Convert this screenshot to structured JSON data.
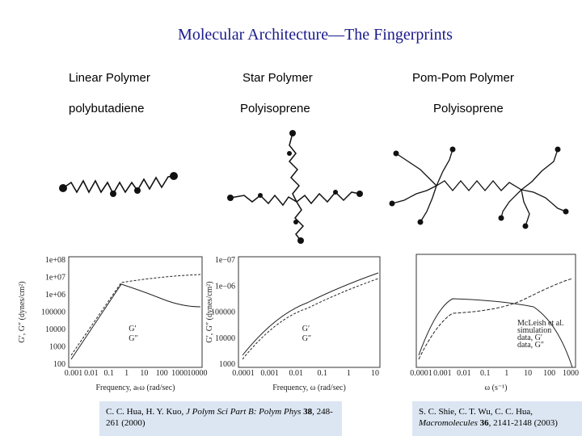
{
  "title": "Molecular Architecture—The Fingerprints",
  "columns": [
    {
      "header": "Linear Polymer",
      "material": "polybutadiene"
    },
    {
      "header": "Star Polymer",
      "material": "Polyisoprene"
    },
    {
      "header": "Pom-Pom Polymer",
      "material": "Polyisoprene"
    }
  ],
  "plots": [
    {
      "y_label": "G′, G″ (dynes/cm²)",
      "x_label": "Frequency, aₜω (rad/sec)",
      "y_ticks": [
        "1e+08",
        "1e+07",
        "1e+06",
        "100000",
        "10000",
        "1000",
        "100"
      ],
      "x_ticks": [
        "0.001",
        "0.01",
        "0.1",
        "1",
        "10",
        "100",
        "1000",
        "10000"
      ],
      "legend": [
        "G′",
        "G″"
      ]
    },
    {
      "y_label": "G′, G″ (dynes/cm²)",
      "x_label": "Frequency, ω (rad/sec)",
      "y_ticks": [
        "1e−07",
        "1e−06",
        "100000",
        "10000",
        "1000"
      ],
      "x_ticks": [
        "0.0001",
        "0.001",
        "0.01",
        "0.1",
        "1",
        "10"
      ],
      "legend": [
        "G′",
        "G″"
      ]
    },
    {
      "x_label": "ω (s⁻¹)",
      "x_ticks": [
        "0.0001",
        "0.001",
        "0.01",
        "0.1",
        "1",
        "10",
        "100",
        "1000"
      ],
      "legend": [
        "McLeish et al.",
        "simulation",
        "data, G′",
        "data, G″"
      ]
    }
  ],
  "citations": [
    {
      "parts": [
        "C. C. Hua, H. Y. Kuo, ",
        "J Polym Sci Part B: Polym Phys",
        " 38",
        ", 248-261 (2000)"
      ]
    },
    {
      "parts": [
        "S. C. Shie, C. T. Wu, C. C. Hua, ",
        "Macromolecules",
        " 36",
        ", 2141-2148 (2003)"
      ]
    }
  ]
}
